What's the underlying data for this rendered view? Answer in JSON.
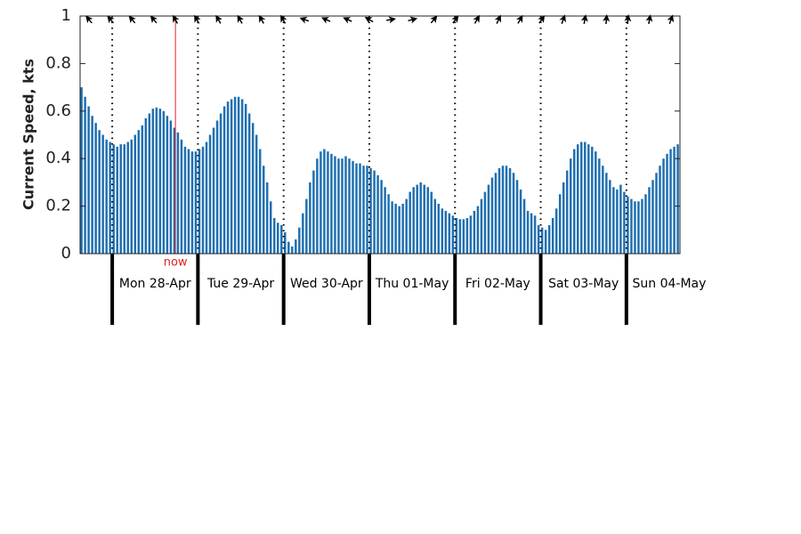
{
  "chart_data": {
    "type": "bar",
    "ylabel": "Current Speed, kts",
    "ylim": [
      0,
      1
    ],
    "yticks": [
      0,
      0.2,
      0.4,
      0.6,
      0.8,
      1
    ],
    "color": "#1f6fb0",
    "days": [
      "Mon 28-Apr",
      "Tue 29-Apr",
      "Wed 30-Apr",
      "Thu 01-May",
      "Fri 02-May",
      "Sat 03-May",
      "Sun 04-May"
    ],
    "now": "now",
    "values": [
      0.7,
      0.66,
      0.62,
      0.58,
      0.55,
      0.52,
      0.5,
      0.48,
      0.47,
      0.46,
      0.45,
      0.46,
      0.46,
      0.47,
      0.48,
      0.5,
      0.52,
      0.54,
      0.57,
      0.59,
      0.61,
      0.615,
      0.61,
      0.6,
      0.58,
      0.56,
      0.53,
      0.51,
      0.48,
      0.45,
      0.44,
      0.43,
      0.43,
      0.44,
      0.45,
      0.47,
      0.5,
      0.53,
      0.56,
      0.59,
      0.62,
      0.64,
      0.65,
      0.66,
      0.66,
      0.65,
      0.63,
      0.59,
      0.55,
      0.5,
      0.44,
      0.37,
      0.3,
      0.22,
      0.15,
      0.13,
      0.12,
      0.09,
      0.05,
      0.03,
      0.06,
      0.11,
      0.17,
      0.23,
      0.3,
      0.35,
      0.4,
      0.43,
      0.44,
      0.43,
      0.42,
      0.41,
      0.4,
      0.4,
      0.41,
      0.4,
      0.39,
      0.38,
      0.38,
      0.37,
      0.37,
      0.36,
      0.35,
      0.33,
      0.31,
      0.28,
      0.25,
      0.22,
      0.21,
      0.2,
      0.21,
      0.23,
      0.26,
      0.28,
      0.29,
      0.3,
      0.29,
      0.28,
      0.26,
      0.23,
      0.21,
      0.19,
      0.18,
      0.17,
      0.16,
      0.15,
      0.145,
      0.145,
      0.15,
      0.16,
      0.18,
      0.2,
      0.23,
      0.26,
      0.29,
      0.32,
      0.34,
      0.36,
      0.37,
      0.37,
      0.36,
      0.34,
      0.31,
      0.27,
      0.23,
      0.18,
      0.17,
      0.16,
      0.12,
      0.11,
      0.1,
      0.12,
      0.15,
      0.19,
      0.25,
      0.3,
      0.35,
      0.4,
      0.44,
      0.46,
      0.47,
      0.47,
      0.46,
      0.45,
      0.43,
      0.4,
      0.37,
      0.34,
      0.31,
      0.28,
      0.27,
      0.29,
      0.26,
      0.24,
      0.23,
      0.22,
      0.22,
      0.23,
      0.25,
      0.28,
      0.31,
      0.34,
      0.37,
      0.4,
      0.42,
      0.44,
      0.45,
      0.46
    ],
    "directions": [
      320,
      320,
      320,
      320,
      330,
      330,
      330,
      330,
      330,
      330,
      290,
      295,
      295,
      300,
      80,
      75,
      40,
      35,
      30,
      25,
      30,
      35,
      20,
      10,
      5,
      5,
      10,
      20
    ]
  }
}
